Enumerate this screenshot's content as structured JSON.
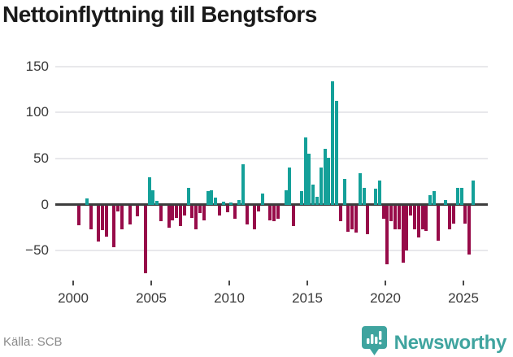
{
  "title": "Nettoinflyttning till Bengtsfors",
  "source_label": "Källa: SCB",
  "brand": {
    "name": "Newsworthy",
    "logo_icon": "bar-chart-pin-icon",
    "color": "#3fa49f"
  },
  "colors": {
    "positive_bar": "#14a099",
    "negative_bar": "#970b49",
    "gridline": "#e8e8eb",
    "zero_line": "#3d3d3d",
    "axis_text": "#3a3a3a"
  },
  "chart_data": {
    "type": "bar",
    "title": "Nettoinflyttning till Bengtsfors",
    "xlabel": "",
    "ylabel": "",
    "period": "quarterly",
    "x_tick_labels": [
      "2000",
      "2005",
      "2010",
      "2015",
      "2020",
      "2025"
    ],
    "y_tick_labels": [
      "150",
      "100",
      "50",
      "0",
      "−50"
    ],
    "y_tick_values": [
      150,
      100,
      50,
      0,
      -50
    ],
    "ylim": [
      -80,
      155
    ],
    "grid": "horizontal",
    "legend": "none",
    "series_name": "Nettoinflyttning per kvartal",
    "start": "2000Q1",
    "end": "2025Q3",
    "values_by_year": [
      {
        "year": 2000,
        "q": [
          0,
          -21,
          0,
          7
        ]
      },
      {
        "year": 2001,
        "q": [
          -25,
          0,
          -39,
          -26
        ]
      },
      {
        "year": 2002,
        "q": [
          -33,
          0,
          -45,
          -6
        ]
      },
      {
        "year": 2003,
        "q": [
          -25,
          0,
          -20,
          0
        ]
      },
      {
        "year": 2004,
        "q": [
          -11,
          0,
          -73,
          30
        ]
      },
      {
        "year": 2005,
        "q": [
          16,
          4,
          -17,
          0
        ]
      },
      {
        "year": 2006,
        "q": [
          -24,
          -16,
          -13,
          -22
        ]
      },
      {
        "year": 2007,
        "q": [
          -10,
          18,
          -13,
          -25
        ]
      },
      {
        "year": 2008,
        "q": [
          -8,
          -16,
          15,
          16
        ]
      },
      {
        "year": 2009,
        "q": [
          8,
          -10,
          3,
          -7
        ]
      },
      {
        "year": 2010,
        "q": [
          2,
          -14,
          5,
          44
        ]
      },
      {
        "year": 2011,
        "q": [
          -20,
          0,
          -25,
          -6
        ]
      },
      {
        "year": 2012,
        "q": [
          12,
          0,
          -16,
          -17
        ]
      },
      {
        "year": 2013,
        "q": [
          -14,
          0,
          16,
          40
        ]
      },
      {
        "year": 2014,
        "q": [
          -22,
          0,
          15,
          73
        ]
      },
      {
        "year": 2015,
        "q": [
          55,
          22,
          9,
          40
        ]
      },
      {
        "year": 2016,
        "q": [
          61,
          51,
          134,
          113
        ]
      },
      {
        "year": 2017,
        "q": [
          -17,
          28,
          -28,
          -25
        ]
      },
      {
        "year": 2018,
        "q": [
          -29,
          34,
          18,
          -31
        ]
      },
      {
        "year": 2019,
        "q": [
          0,
          17,
          26,
          -14
        ]
      },
      {
        "year": 2020,
        "q": [
          -63,
          -17,
          -25,
          -25
        ]
      },
      {
        "year": 2021,
        "q": [
          -62,
          -48,
          -10,
          -25
        ]
      },
      {
        "year": 2022,
        "q": [
          -34,
          -25,
          -27,
          10
        ]
      },
      {
        "year": 2023,
        "q": [
          15,
          -38,
          0,
          5
        ]
      },
      {
        "year": 2024,
        "q": [
          -25,
          -19,
          18,
          18
        ]
      },
      {
        "year": 2025,
        "q": [
          -19,
          -53,
          26
        ]
      }
    ]
  }
}
